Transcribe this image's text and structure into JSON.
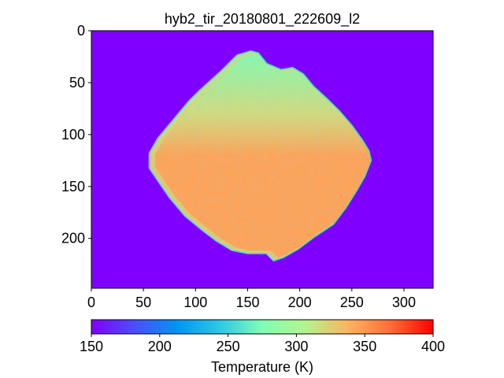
{
  "chart_data": {
    "type": "heatmap",
    "title": "hyb2_tir_20180801_222609_l2",
    "xlim": [
      0,
      328
    ],
    "ylim": [
      248,
      0
    ],
    "x_ticks": [
      0,
      50,
      100,
      150,
      200,
      250,
      300
    ],
    "y_ticks": [
      0,
      50,
      100,
      150,
      200
    ],
    "x_tick_labels": [
      "0",
      "50",
      "100",
      "150",
      "200",
      "250",
      "300"
    ],
    "y_tick_labels": [
      "0",
      "50",
      "100",
      "150",
      "200"
    ],
    "colorbar": {
      "label": "Temperature (K)",
      "range": [
        150,
        400
      ],
      "ticks": [
        150,
        200,
        250,
        300,
        350,
        400
      ],
      "tick_labels": [
        "150",
        "200",
        "250",
        "300",
        "350",
        "400"
      ],
      "colormap": "rainbow",
      "orientation": "horizontal"
    },
    "background_value": 150,
    "limb_value": 255,
    "upper_region_value": 318,
    "lower_region_value": 345,
    "object_outline": [
      [
        153,
        20
      ],
      [
        160,
        22
      ],
      [
        168,
        32
      ],
      [
        182,
        38
      ],
      [
        193,
        36
      ],
      [
        203,
        42
      ],
      [
        213,
        54
      ],
      [
        226,
        66
      ],
      [
        238,
        78
      ],
      [
        250,
        92
      ],
      [
        260,
        106
      ],
      [
        266,
        116
      ],
      [
        268,
        125
      ],
      [
        262,
        140
      ],
      [
        254,
        154
      ],
      [
        244,
        170
      ],
      [
        232,
        186
      ],
      [
        214,
        198
      ],
      [
        198,
        210
      ],
      [
        184,
        218
      ],
      [
        175,
        221
      ],
      [
        168,
        214
      ],
      [
        150,
        214
      ],
      [
        135,
        211
      ],
      [
        120,
        202
      ],
      [
        107,
        192
      ],
      [
        90,
        178
      ],
      [
        75,
        160
      ],
      [
        64,
        144
      ],
      [
        56,
        132
      ],
      [
        56,
        118
      ],
      [
        64,
        104
      ],
      [
        74,
        92
      ],
      [
        84,
        80
      ],
      [
        94,
        68
      ],
      [
        104,
        58
      ],
      [
        115,
        48
      ],
      [
        126,
        38
      ],
      [
        140,
        24
      ]
    ],
    "grid": false
  }
}
